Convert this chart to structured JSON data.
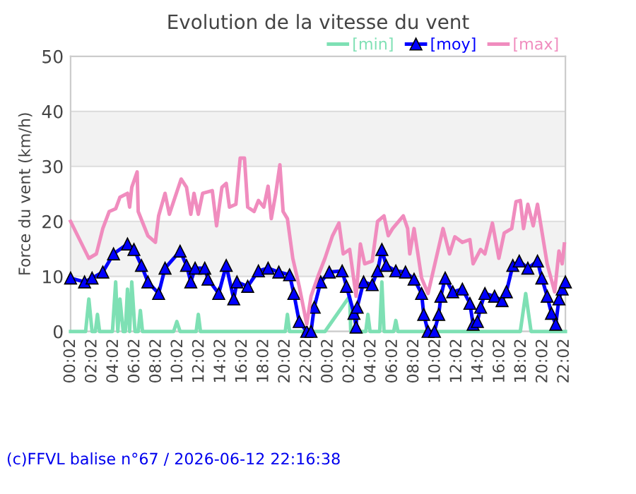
{
  "chart_data": {
    "type": "line",
    "title": "Evolution de la vitesse du vent",
    "ylabel": "Force du vent (km/h)",
    "annotations": [
      "(c)FFVL balise n°67 / 2026-06-12 22:16:38"
    ],
    "xlim": [
      "2026-06-11T00:02",
      "2026-06-12T22:08"
    ],
    "ylim": [
      0,
      50
    ],
    "yticks": [
      0,
      10,
      20,
      30,
      40,
      50
    ],
    "xticks": [
      {
        "value": "2026-06-11T00:02",
        "label": "00:02"
      },
      {
        "value": "2026-06-11T02:02",
        "label": "02:02"
      },
      {
        "value": "2026-06-11T04:02",
        "label": "04:02"
      },
      {
        "value": "2026-06-11T06:02",
        "label": "06:02"
      },
      {
        "value": "2026-06-11T08:02",
        "label": "08:02"
      },
      {
        "value": "2026-06-11T10:02",
        "label": "10:02"
      },
      {
        "value": "2026-06-11T12:02",
        "label": "12:02"
      },
      {
        "value": "2026-06-11T14:02",
        "label": "14:02"
      },
      {
        "value": "2026-06-11T16:02",
        "label": "16:02"
      },
      {
        "value": "2026-06-11T18:02",
        "label": "18:02"
      },
      {
        "value": "2026-06-11T20:02",
        "label": "20:02"
      },
      {
        "value": "2026-06-11T22:02",
        "label": "22:02"
      },
      {
        "value": "2026-06-12T00:02",
        "label": "00:02"
      },
      {
        "value": "2026-06-12T02:02",
        "label": "02:02"
      },
      {
        "value": "2026-06-12T04:02",
        "label": "04:02"
      },
      {
        "value": "2026-06-12T06:02",
        "label": "06:02"
      },
      {
        "value": "2026-06-12T08:02",
        "label": "08:02"
      },
      {
        "value": "2026-06-12T10:02",
        "label": "10:02"
      },
      {
        "value": "2026-06-12T12:02",
        "label": "12:02"
      },
      {
        "value": "2026-06-12T14:02",
        "label": "14:02"
      },
      {
        "value": "2026-06-12T16:02",
        "label": "16:02"
      },
      {
        "value": "2026-06-12T18:02",
        "label": "18:02"
      },
      {
        "value": "2026-06-12T20:02",
        "label": "20:02"
      },
      {
        "value": "2026-06-12T22:02",
        "label": "22:02"
      }
    ],
    "grid": "y",
    "legend": "top right",
    "bands": [
      {
        "axis": "y",
        "from": 10,
        "to": 20,
        "color": "#f2f2f2"
      },
      {
        "axis": "y",
        "from": 30,
        "to": 40,
        "color": "#f2f2f2"
      }
    ],
    "series": [
      {
        "name": "[min]",
        "color": "#7ee0b4",
        "marker": "none",
        "x": [
          "2026-06-11T00:02",
          "2026-06-11T01:26",
          "2026-06-11T01:44",
          "2026-06-11T02:02",
          "2026-06-11T02:20",
          "2026-06-11T02:32",
          "2026-06-11T02:44",
          "2026-06-11T03:56",
          "2026-06-11T04:14",
          "2026-06-11T04:26",
          "2026-06-11T04:38",
          "2026-06-11T04:56",
          "2026-06-11T05:08",
          "2026-06-11T05:20",
          "2026-06-11T05:32",
          "2026-06-11T05:44",
          "2026-06-11T06:02",
          "2026-06-11T06:20",
          "2026-06-11T06:32",
          "2026-06-11T06:44",
          "2026-06-11T09:38",
          "2026-06-11T09:56",
          "2026-06-11T10:14",
          "2026-06-11T11:44",
          "2026-06-11T11:56",
          "2026-06-11T12:08",
          "2026-06-11T20:02",
          "2026-06-11T20:14",
          "2026-06-11T20:26",
          "2026-06-11T23:44",
          "2026-06-12T02:02",
          "2026-06-12T02:08",
          "2026-06-12T03:32",
          "2026-06-12T03:44",
          "2026-06-12T03:56",
          "2026-06-12T04:50",
          "2026-06-12T05:02",
          "2026-06-12T05:14",
          "2026-06-12T06:08",
          "2026-06-12T06:20",
          "2026-06-12T06:32",
          "2026-06-12T17:56",
          "2026-06-12T18:26",
          "2026-06-12T18:56",
          "2026-06-12T22:08"
        ],
        "values": [
          0,
          0,
          5.9,
          0,
          0,
          3.1,
          0,
          0,
          9,
          0,
          5.9,
          0,
          0,
          7.7,
          0,
          9,
          0,
          0,
          3.8,
          0,
          0,
          1.8,
          0,
          0,
          3.1,
          0,
          0,
          3.1,
          0,
          0,
          6.4,
          0,
          0,
          3.1,
          0,
          0,
          9,
          0,
          0,
          2.0,
          0,
          0,
          6.9,
          0,
          0
        ]
      },
      {
        "name": "[moy]",
        "color": "#0000ff",
        "marker": "triangle",
        "x": [
          "2026-06-11T00:02",
          "2026-06-11T01:20",
          "2026-06-11T02:02",
          "2026-06-11T03:02",
          "2026-06-11T04:02",
          "2026-06-11T05:20",
          "2026-06-11T05:56",
          "2026-06-11T06:38",
          "2026-06-11T07:14",
          "2026-06-11T08:14",
          "2026-06-11T08:50",
          "2026-06-11T10:14",
          "2026-06-11T10:50",
          "2026-06-11T11:14",
          "2026-06-11T11:38",
          "2026-06-11T12:32",
          "2026-06-11T12:50",
          "2026-06-11T13:50",
          "2026-06-11T14:32",
          "2026-06-11T15:14",
          "2026-06-11T15:32",
          "2026-06-11T16:32",
          "2026-06-11T17:32",
          "2026-06-11T18:26",
          "2026-06-11T19:26",
          "2026-06-11T20:26",
          "2026-06-11T20:50",
          "2026-06-11T21:20",
          "2026-06-11T22:02",
          "2026-06-11T22:26",
          "2026-06-11T22:44",
          "2026-06-11T23:20",
          "2026-06-12T00:08",
          "2026-06-12T01:20",
          "2026-06-12T01:44",
          "2026-06-12T02:26",
          "2026-06-12T02:38",
          "2026-06-12T02:44",
          "2026-06-12T03:20",
          "2026-06-12T04:08",
          "2026-06-12T04:38",
          "2026-06-12T05:02",
          "2026-06-12T05:26",
          "2026-06-12T06:20",
          "2026-06-12T07:14",
          "2026-06-12T08:02",
          "2026-06-12T08:44",
          "2026-06-12T08:56",
          "2026-06-12T09:20",
          "2026-06-12T09:56",
          "2026-06-12T10:20",
          "2026-06-12T10:32",
          "2026-06-12T10:56",
          "2026-06-12T11:38",
          "2026-06-12T12:32",
          "2026-06-12T13:14",
          "2026-06-12T13:32",
          "2026-06-12T13:56",
          "2026-06-12T14:14",
          "2026-06-12T14:38",
          "2026-06-12T15:32",
          "2026-06-12T16:14",
          "2026-06-12T16:38",
          "2026-06-12T17:14",
          "2026-06-12T17:50",
          "2026-06-12T18:38",
          "2026-06-12T19:32",
          "2026-06-12T19:56",
          "2026-06-12T20:26",
          "2026-06-12T20:50",
          "2026-06-12T21:14",
          "2026-06-12T21:32",
          "2026-06-12T21:50",
          "2026-06-12T22:08"
        ],
        "values": [
          9.7,
          9,
          9.7,
          10.8,
          14.1,
          15.9,
          14.9,
          12,
          9,
          6.9,
          11.5,
          14.6,
          12,
          9,
          11.5,
          11.5,
          9.5,
          6.9,
          12,
          5.9,
          9,
          8.2,
          11,
          11.5,
          10.8,
          10.3,
          6.9,
          1.8,
          0,
          0,
          4.4,
          9,
          10.8,
          11,
          8.2,
          3.3,
          0.8,
          4.4,
          9,
          8.5,
          11,
          14.9,
          12,
          11,
          10.8,
          9.5,
          6.9,
          3.1,
          0,
          0,
          3.1,
          6.4,
          9.7,
          7.2,
          7.7,
          5.1,
          1.3,
          1.8,
          4.4,
          6.9,
          6.4,
          5.6,
          7.2,
          12,
          12.8,
          11.5,
          12.8,
          9.7,
          6.4,
          3.3,
          1.3,
          5.9,
          7.7,
          9
        ]
      },
      {
        "name": "[max]",
        "color": "#f08cbe",
        "marker": "none",
        "x": [
          "2026-06-11T00:02",
          "2026-06-11T01:44",
          "2026-06-11T02:26",
          "2026-06-11T03:02",
          "2026-06-11T03:38",
          "2026-06-11T04:14",
          "2026-06-11T04:38",
          "2026-06-11T05:20",
          "2026-06-11T05:32",
          "2026-06-11T05:44",
          "2026-06-11T06:14",
          "2026-06-11T06:20",
          "2026-06-11T07:14",
          "2026-06-11T07:56",
          "2026-06-11T08:14",
          "2026-06-11T08:50",
          "2026-06-11T09:14",
          "2026-06-11T10:20",
          "2026-06-11T10:50",
          "2026-06-11T11:14",
          "2026-06-11T11:32",
          "2026-06-11T11:56",
          "2026-06-11T12:20",
          "2026-06-11T13:14",
          "2026-06-11T13:38",
          "2026-06-11T14:08",
          "2026-06-11T14:32",
          "2026-06-11T14:50",
          "2026-06-11T15:26",
          "2026-06-11T15:50",
          "2026-06-11T16:14",
          "2026-06-11T16:32",
          "2026-06-11T17:08",
          "2026-06-11T17:32",
          "2026-06-11T18:02",
          "2026-06-11T18:26",
          "2026-06-11T18:44",
          "2026-06-11T19:08",
          "2026-06-11T19:32",
          "2026-06-11T19:50",
          "2026-06-11T20:14",
          "2026-06-11T20:44",
          "2026-06-11T21:20",
          "2026-06-11T22:02",
          "2026-06-11T22:26",
          "2026-06-11T23:08",
          "2026-06-11T23:44",
          "2026-06-12T00:26",
          "2026-06-12T01:02",
          "2026-06-12T01:26",
          "2026-06-12T02:02",
          "2026-06-12T02:38",
          "2026-06-12T03:02",
          "2026-06-12T03:26",
          "2026-06-12T04:08",
          "2026-06-12T04:38",
          "2026-06-12T05:14",
          "2026-06-12T05:38",
          "2026-06-12T06:02",
          "2026-06-12T07:02",
          "2026-06-12T07:26",
          "2026-06-12T07:38",
          "2026-06-12T08:02",
          "2026-06-12T08:44",
          "2026-06-12T09:20",
          "2026-06-12T10:02",
          "2026-06-12T10:44",
          "2026-06-12T11:20",
          "2026-06-12T11:50",
          "2026-06-12T12:32",
          "2026-06-12T13:14",
          "2026-06-12T13:32",
          "2026-06-12T14:14",
          "2026-06-12T14:38",
          "2026-06-12T15:20",
          "2026-06-12T15:56",
          "2026-06-12T16:26",
          "2026-06-12T17:08",
          "2026-06-12T17:32",
          "2026-06-12T17:56",
          "2026-06-12T18:14",
          "2026-06-12T18:38",
          "2026-06-12T19:08",
          "2026-06-12T19:32",
          "2026-06-12T20:26",
          "2026-06-12T21:08",
          "2026-06-12T21:32",
          "2026-06-12T21:50",
          "2026-06-12T22:02"
        ],
        "values": [
          20,
          13.3,
          14.1,
          18.7,
          21.8,
          22.3,
          24.4,
          25.1,
          22.6,
          26.2,
          29,
          21.8,
          17.4,
          16.2,
          21,
          25.1,
          21.3,
          27.7,
          26.2,
          21.3,
          25.1,
          21.3,
          25.1,
          25.6,
          19.2,
          26.2,
          26.9,
          22.6,
          23.1,
          31.5,
          31.5,
          22.6,
          21.8,
          23.8,
          22.6,
          26.4,
          20.5,
          24.9,
          30.3,
          21.8,
          20.5,
          13.3,
          8.2,
          1.3,
          6.4,
          10.3,
          13.3,
          17.4,
          19.7,
          14.1,
          14.9,
          6.4,
          15.9,
          12.3,
          12.8,
          20,
          21,
          17.4,
          18.7,
          21,
          18.7,
          14.1,
          18.7,
          9.7,
          6.9,
          12.8,
          18.7,
          14.1,
          17.2,
          16.2,
          16.7,
          12.3,
          14.9,
          14.1,
          19.7,
          13.3,
          17.9,
          18.7,
          23.6,
          23.8,
          18.7,
          23.1,
          19.2,
          23.1,
          12.3,
          7.2,
          14.6,
          12.3,
          15.9
        ]
      }
    ]
  }
}
